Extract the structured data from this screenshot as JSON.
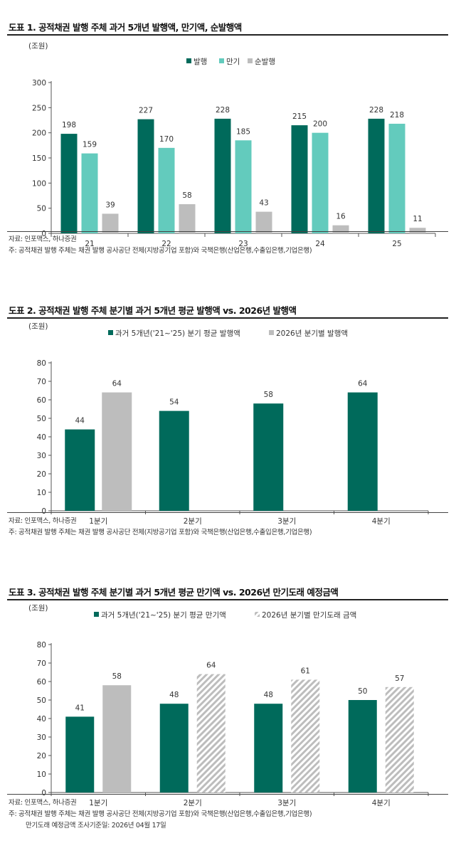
{
  "figures": [
    {
      "title": "도표 1. 공적채권 발행 주체 과거 5개년 발행액, 만기액, 순발행액",
      "source": "자료: 인포맥스, 하나증권",
      "note": "주: 공적채권 발행 주체는 채권 발행 공사공단 전체(지방공기업 포함)와 국책은행(산업은행,수출입은행,기업은행)",
      "note2": ""
    },
    {
      "title": "도표 2. 공적채권 발행 주체 분기별 과거 5개년 평균 발행액 vs. 2026년 발행액",
      "source": "자료: 인포맥스, 하나증권",
      "note": "주: 공적채권 발행 주체는 채권 발행 공사공단 전체(지방공기업 포함)와 국책은행(산업은행,수출입은행,기업은행)",
      "note2": ""
    },
    {
      "title": "도표 3. 공적채권 발행 주체 분기별 과거 5개년 평균 만기액 vs. 2026년 만기도래 예정금액",
      "source": "자료: 인포맥스, 하나증권",
      "note": "주: 공적채권 발행 주체는 채권 발행 공사공단 전체(지방공기업 포함)와 국책은행(산업은행,수출입은행,기업은행)",
      "note2": "만기도래 예정금액 조사기준일: 2026년 04월 17일"
    }
  ],
  "chart_data": [
    {
      "type": "bar",
      "unit_label": "(조원)",
      "categories": [
        "21",
        "22",
        "23",
        "24",
        "25"
      ],
      "series": [
        {
          "name": "발행",
          "values": [
            198,
            227,
            228,
            215,
            228
          ],
          "color": "#006a5b"
        },
        {
          "name": "만기",
          "values": [
            159,
            170,
            185,
            200,
            218
          ],
          "color": "#63cbbd"
        },
        {
          "name": "순발행",
          "values": [
            39,
            58,
            43,
            16,
            11
          ],
          "color": "#bdbdbd"
        }
      ],
      "ylim": [
        0,
        300
      ],
      "yticks": [
        0,
        50,
        100,
        150,
        200,
        250,
        300
      ],
      "legend": "top-center",
      "grid": false
    },
    {
      "type": "bar",
      "unit_label": "(조원)",
      "categories": [
        "1분기",
        "2분기",
        "3분기",
        "4분기"
      ],
      "series": [
        {
          "name": "과거 5개년('21~'25) 분기 평균 발행액",
          "values": [
            44,
            54,
            58,
            64
          ],
          "color": "#006a5b"
        },
        {
          "name": "2026년 분기별 발행액",
          "values": [
            64,
            null,
            null,
            null
          ],
          "color": "#bdbdbd"
        }
      ],
      "ylim": [
        0,
        80
      ],
      "yticks": [
        0,
        10,
        20,
        30,
        40,
        50,
        60,
        70,
        80
      ],
      "legend": "top-center",
      "grid": false
    },
    {
      "type": "bar",
      "unit_label": "(조원)",
      "categories": [
        "1분기",
        "2분기",
        "3분기",
        "4분기"
      ],
      "series": [
        {
          "name": "과거 5개년('21~'25) 분기 평균 만기액",
          "values": [
            41,
            48,
            48,
            50
          ],
          "color": "#006a5b"
        },
        {
          "name": "2026년 분기별 만기도래 금액",
          "values": [
            58,
            64,
            61,
            57
          ],
          "color": "#bdbdbd",
          "hatched_from_index": 1
        }
      ],
      "ylim": [
        0,
        80
      ],
      "yticks": [
        0,
        10,
        20,
        30,
        40,
        50,
        60,
        70,
        80
      ],
      "legend": "top-center",
      "grid": false
    }
  ]
}
